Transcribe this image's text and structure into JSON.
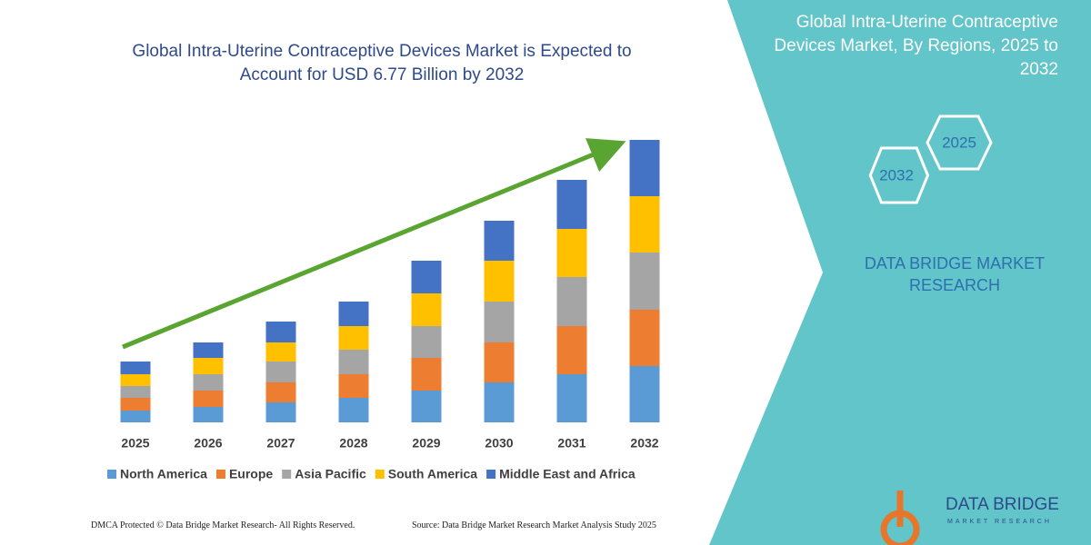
{
  "chart_data": {
    "type": "bar",
    "stacked": true,
    "title": "Global Intra-Uterine Contraceptive Devices Market is Expected to Account for USD 6.77 Billion by 2032",
    "categories": [
      "2025",
      "2026",
      "2027",
      "2028",
      "2029",
      "2030",
      "2031",
      "2032"
    ],
    "series": [
      {
        "name": "North America",
        "color": "#5b9bd5",
        "values": [
          13,
          17,
          22,
          27,
          35,
          44,
          53,
          62
        ]
      },
      {
        "name": "Europe",
        "color": "#ed7d31",
        "values": [
          14,
          18,
          22,
          26,
          36,
          44,
          53,
          62
        ]
      },
      {
        "name": "Asia Pacific",
        "color": "#a5a5a5",
        "values": [
          13,
          18,
          23,
          27,
          35,
          45,
          54,
          63
        ]
      },
      {
        "name": "South America",
        "color": "#ffc000",
        "values": [
          13,
          18,
          21,
          26,
          36,
          45,
          53,
          62
        ]
      },
      {
        "name": "Middle East and Africa",
        "color": "#4472c4",
        "values": [
          14,
          17,
          23,
          27,
          36,
          44,
          54,
          62
        ]
      }
    ]
  },
  "side_panel": {
    "title": "Global Intra-Uterine Contraceptive Devices Market, By Regions, 2025 to 2032",
    "hexagons": [
      "2025",
      "2032"
    ],
    "brand": "DATA BRIDGE MARKET RESEARCH"
  },
  "footer": {
    "left": "DMCA Protected © Data Bridge Market Research- All Rights Reserved.",
    "right": "Source: Data Bridge Market Research Market Analysis Study 2025"
  },
  "logo": {
    "name": "DATA BRIDGE",
    "tagline": "MARKET RESEARCH"
  }
}
